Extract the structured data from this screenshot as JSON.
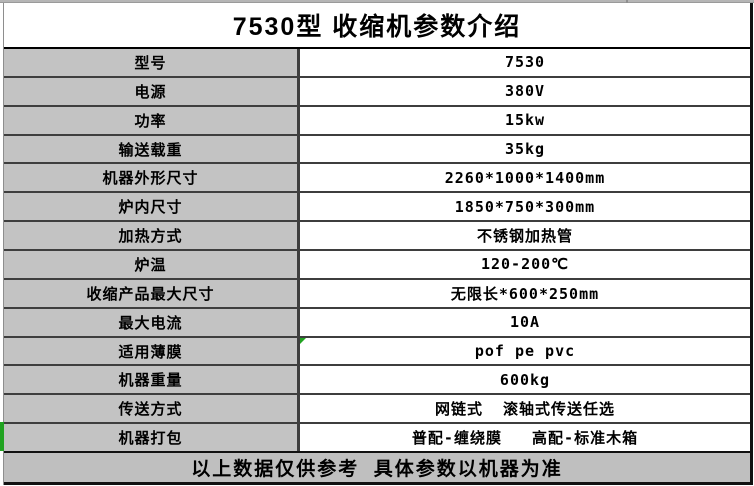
{
  "title": "7530型 收缩机参数介绍",
  "table": {
    "rows": [
      {
        "label": "型号",
        "value": "7530"
      },
      {
        "label": "电源",
        "value": "380V"
      },
      {
        "label": "功率",
        "value": "15kw"
      },
      {
        "label": "输送载重",
        "value": "35kg"
      },
      {
        "label": "机器外形尺寸",
        "value": "2260*1000*1400mm"
      },
      {
        "label": "炉内尺寸",
        "value": "1850*750*300mm"
      },
      {
        "label": "加热方式",
        "value": "不锈钢加热管"
      },
      {
        "label": "炉温",
        "value": "120-200℃"
      },
      {
        "label": "收缩产品最大尺寸",
        "value": "无限长*600*250mm"
      },
      {
        "label": "最大电流",
        "value": "10A"
      },
      {
        "label": "适用薄膜",
        "value": "pof pe pvc",
        "green_corner_mark": true
      },
      {
        "label": "机器重量",
        "value": "600kg"
      },
      {
        "label": "传送方式",
        "value": "网链式  滚轴式传送任选"
      },
      {
        "label": "机器打包",
        "value": "普配-缠绕膜   高配-标准木箱",
        "green_left_bar": true
      }
    ]
  },
  "footer": "以上数据仅供参考  具体参数以机器为准",
  "colors": {
    "label_cell_bg": "#c3c3c3",
    "footer_bg": "#bfbfbf",
    "border_dark": "#3e3e3e",
    "border_black": "#111111",
    "accent_green": "#21a321",
    "text": "#000000"
  }
}
